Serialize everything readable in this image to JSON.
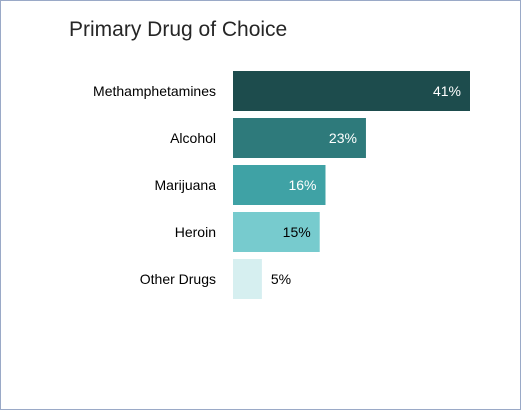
{
  "chart_data": {
    "type": "bar",
    "orientation": "horizontal",
    "title": "Primary Drug of Choice",
    "categories": [
      "Methamphetamines",
      "Alcohol",
      "Marijuana",
      "Heroin",
      "Other Drugs"
    ],
    "values": [
      41,
      23,
      16,
      15,
      5
    ],
    "value_labels": [
      "41%",
      "23%",
      "16%",
      "15%",
      "5%"
    ],
    "bar_colors": [
      "#1d4c4d",
      "#2e7a7b",
      "#3fa2a5",
      "#77cbce",
      "#d6eff0"
    ],
    "label_colors": [
      "#ffffff",
      "#ffffff",
      "#ffffff",
      "#000000",
      "#000000"
    ],
    "xlim": [
      0,
      41
    ],
    "unit": "%",
    "grid": false,
    "legend": "none"
  }
}
